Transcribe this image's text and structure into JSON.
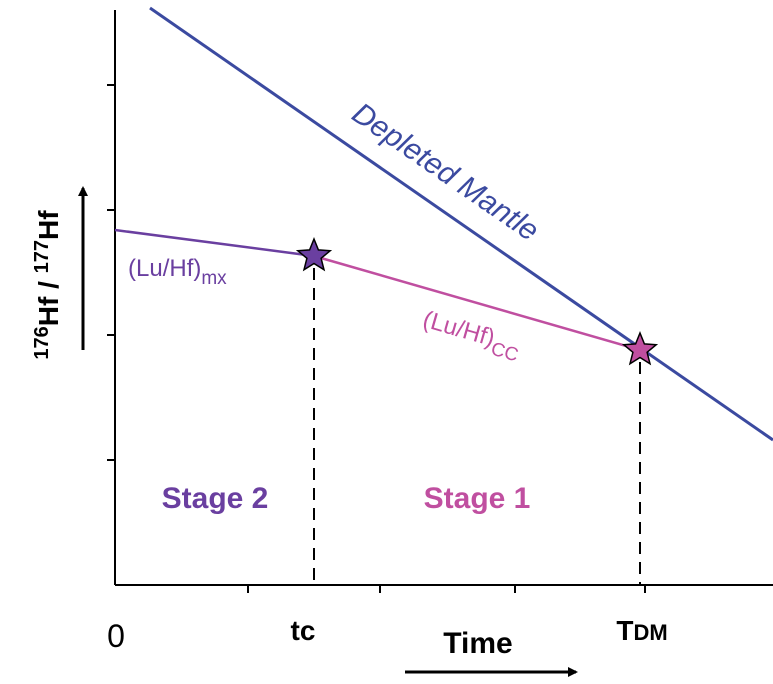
{
  "labels": {
    "depleted_mantle": "Depleted Mantle",
    "mx": {
      "main": "(Lu/Hf)",
      "sub": "mx"
    },
    "cc": {
      "main": "(Lu/Hf)",
      "sub": "CC"
    },
    "stage2": "Stage 2",
    "stage1": "Stage 1"
  },
  "x_axis": {
    "origin": "0",
    "tc": "tc",
    "tdm": {
      "main": "T",
      "sub": "DM"
    },
    "title": "Time"
  },
  "y_axis": {
    "title": {
      "sup1": "176",
      "main1": "Hf / ",
      "sup2": "177",
      "main2": "Hf"
    }
  }
}
